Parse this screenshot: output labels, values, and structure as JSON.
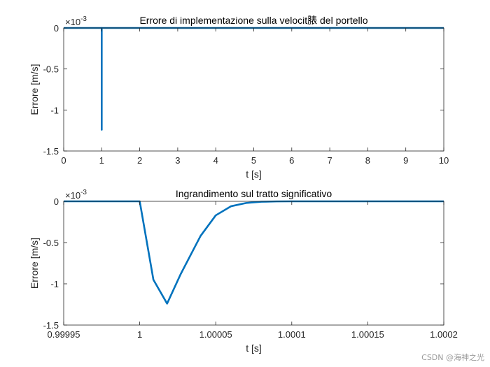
{
  "chart_data": [
    {
      "type": "line",
      "title": "Errore di implementazione sulla velocit脿 del portello",
      "xlabel": "t [s]",
      "ylabel": "Errore [m/s]",
      "y_exponent_label": "×10",
      "y_exponent": "-3",
      "xlim": [
        0,
        10
      ],
      "ylim": [
        -1.5,
        0
      ],
      "xticks": [
        "0",
        "1",
        "2",
        "3",
        "4",
        "5",
        "6",
        "7",
        "8",
        "9",
        "10"
      ],
      "yticks": [
        "0",
        "-0.5",
        "-1",
        "-1.5"
      ],
      "line_color": "#0072BD",
      "series": [
        {
          "x": [
            0,
            0.99999,
            1.0,
            1.00001,
            1.00002,
            1.00003,
            1.00004,
            1.00005,
            1.00006,
            1.00007,
            1.00008,
            1.0001,
            10
          ],
          "y": [
            0,
            0,
            0,
            -0.95,
            -1.24,
            -0.88,
            -0.42,
            -0.17,
            -0.06,
            -0.02,
            -0.005,
            0,
            0
          ]
        }
      ]
    },
    {
      "type": "line",
      "title": "Ingrandimento sul tratto significativo",
      "xlabel": "t [s]",
      "ylabel": "Errore [m/s]",
      "y_exponent_label": "×10",
      "y_exponent": "-3",
      "xlim": [
        0.99995,
        1.0002
      ],
      "ylim": [
        -1.5,
        0
      ],
      "xticks": [
        "0.99995",
        "1",
        "1.00005",
        "1.0001",
        "1.00015",
        "1.0002"
      ],
      "yticks": [
        "0",
        "-0.5",
        "-1",
        "-1.5"
      ],
      "line_color": "#0072BD",
      "series": [
        {
          "x": [
            0.99995,
            1.0,
            1.000009,
            1.000018,
            1.000027,
            1.00004,
            1.00005,
            1.00006,
            1.00007,
            1.00008,
            1.00009,
            1.0001,
            1.0002
          ],
          "y": [
            0,
            0,
            -0.95,
            -1.24,
            -0.88,
            -0.42,
            -0.17,
            -0.06,
            -0.02,
            -0.005,
            -0.001,
            0,
            0
          ]
        }
      ]
    }
  ],
  "watermark": "CSDN @海神之光"
}
